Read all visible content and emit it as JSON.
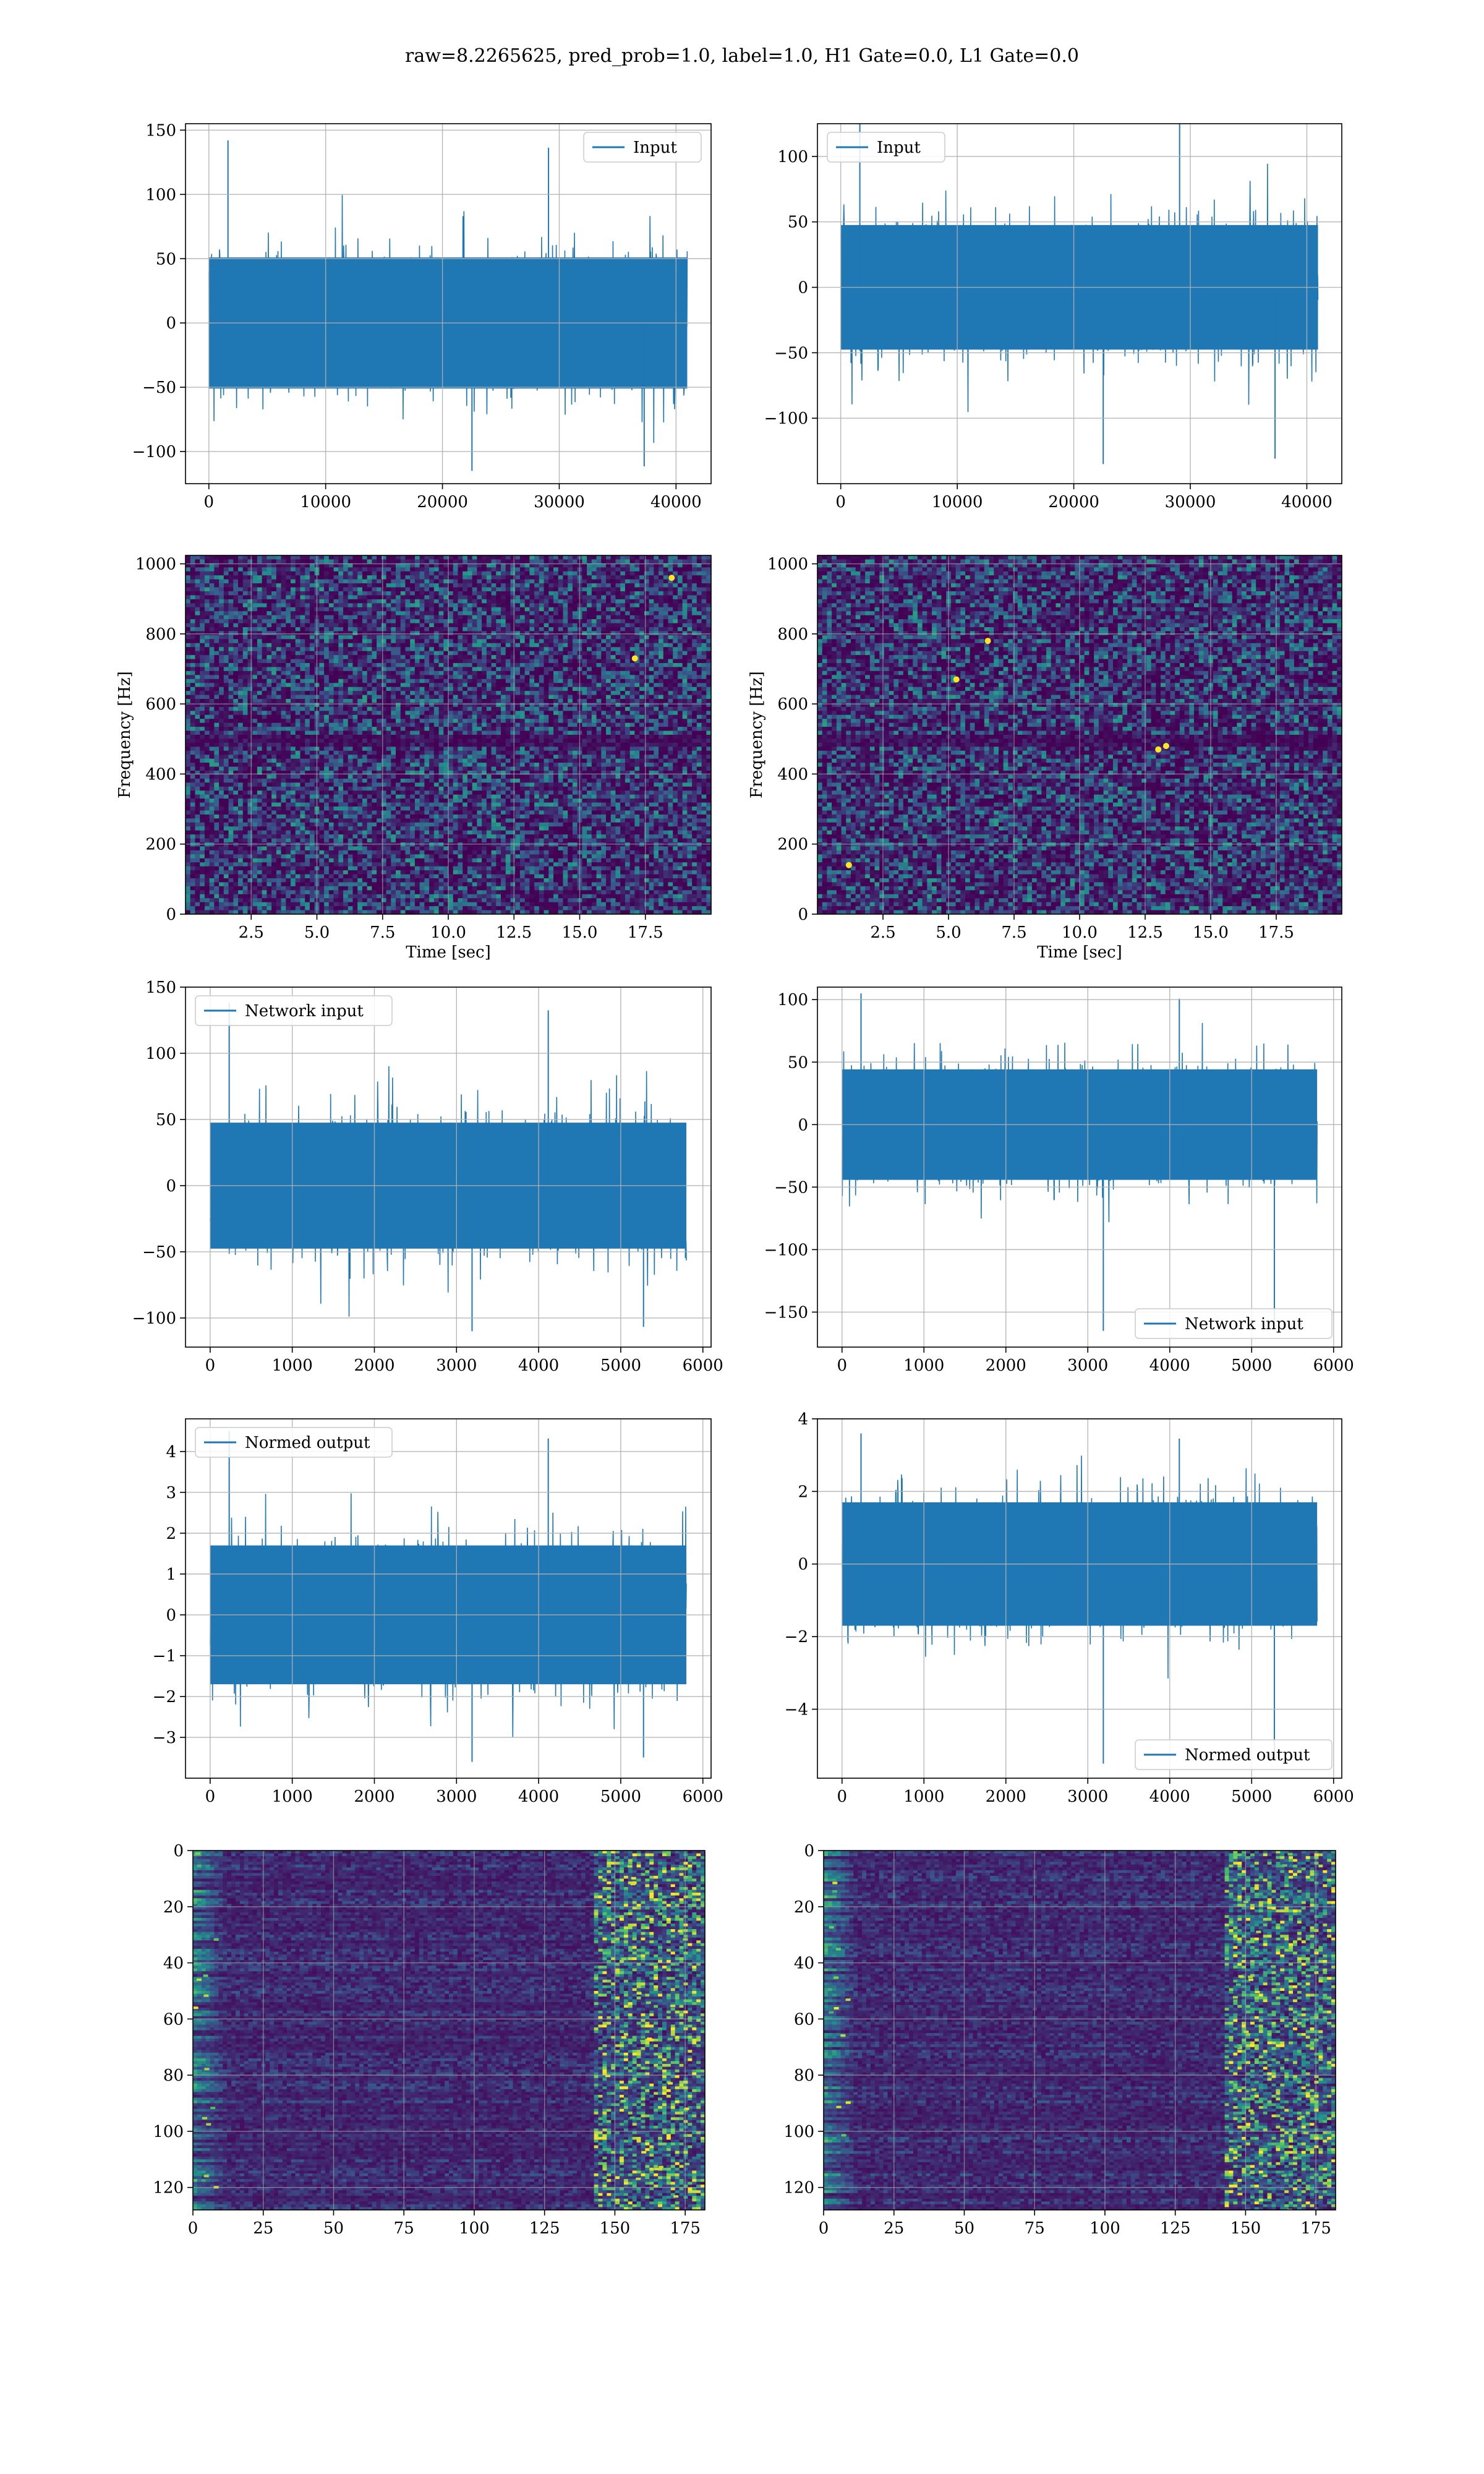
{
  "figure_title": "raw=8.2265625, pred_prob=1.0, label=1.0, H1 Gate=0.0, L1 Gate=0.0",
  "colors": {
    "series": "#1f77b4",
    "grid": "#b0b0b0",
    "axis": "#000000",
    "heat_low": "#440154",
    "heat_mid": "#21918c",
    "heat_high": "#fde725"
  },
  "chart_data": [
    {
      "id": "input-h1",
      "type": "line",
      "legend": "Input",
      "legend_loc": "upper right",
      "n_points": 40960,
      "amplitude": 30,
      "spike_range": [
        -115,
        142
      ],
      "xlim": [
        -2000,
        43000
      ],
      "ylim": [
        -125,
        155
      ],
      "xticks": [
        0,
        10000,
        20000,
        30000,
        40000
      ],
      "yticks": [
        -100,
        -50,
        0,
        50,
        100,
        150
      ],
      "grid": true
    },
    {
      "id": "input-l1",
      "type": "line",
      "legend": "Input",
      "legend_loc": "upper left",
      "n_points": 40960,
      "amplitude": 28,
      "spike_range": [
        -135,
        130
      ],
      "xlim": [
        -2000,
        43000
      ],
      "ylim": [
        -150,
        125
      ],
      "xticks": [
        0,
        10000,
        20000,
        30000,
        40000
      ],
      "yticks": [
        -100,
        -50,
        0,
        50,
        100
      ],
      "grid": true
    },
    {
      "id": "spec-h1",
      "type": "heatmap",
      "xlabel": "Time [sec]",
      "ylabel": "Frequency [Hz]",
      "xlim": [
        0,
        20
      ],
      "ylim": [
        0,
        1024
      ],
      "xticks": [
        2.5,
        5.0,
        7.5,
        10.0,
        12.5,
        15.0,
        17.5
      ],
      "yticks": [
        0,
        200,
        400,
        600,
        800,
        1000
      ],
      "grid": true,
      "hot_spots": [
        [
          18.5,
          960
        ],
        [
          17.1,
          730
        ]
      ]
    },
    {
      "id": "spec-l1",
      "type": "heatmap",
      "xlabel": "Time [sec]",
      "ylabel": "Frequency [Hz]",
      "xlim": [
        0,
        20
      ],
      "ylim": [
        0,
        1024
      ],
      "xticks": [
        2.5,
        5.0,
        7.5,
        10.0,
        12.5,
        15.0,
        17.5
      ],
      "yticks": [
        0,
        200,
        400,
        600,
        800,
        1000
      ],
      "grid": true,
      "hot_spots": [
        [
          6.5,
          780
        ],
        [
          5.3,
          670
        ],
        [
          13.0,
          470
        ],
        [
          13.3,
          480
        ],
        [
          1.2,
          140
        ]
      ]
    },
    {
      "id": "net-h1",
      "type": "line",
      "legend": "Network input",
      "legend_loc": "upper left",
      "n_points": 5800,
      "amplitude": 28,
      "spike_range": [
        -110,
        138
      ],
      "xlim": [
        -300,
        6100
      ],
      "ylim": [
        -122,
        150
      ],
      "xticks": [
        0,
        1000,
        2000,
        3000,
        4000,
        5000,
        6000
      ],
      "yticks": [
        -100,
        -50,
        0,
        50,
        100,
        150
      ],
      "grid": true
    },
    {
      "id": "net-l1",
      "type": "line",
      "legend": "Network input",
      "legend_loc": "lower right",
      "n_points": 5800,
      "amplitude": 26,
      "spike_range": [
        -165,
        105
      ],
      "xlim": [
        -300,
        6100
      ],
      "ylim": [
        -178,
        110
      ],
      "xticks": [
        0,
        1000,
        2000,
        3000,
        4000,
        5000,
        6000
      ],
      "yticks": [
        -150,
        -100,
        -50,
        0,
        50,
        100
      ],
      "grid": true
    },
    {
      "id": "norm-h1",
      "type": "line",
      "legend": "Normed output",
      "legend_loc": "upper left",
      "n_points": 5800,
      "amplitude": 1.0,
      "spike_range": [
        -3.6,
        4.5
      ],
      "xlim": [
        -300,
        6100
      ],
      "ylim": [
        -4.0,
        4.8
      ],
      "xticks": [
        0,
        1000,
        2000,
        3000,
        4000,
        5000,
        6000
      ],
      "yticks": [
        -3,
        -2,
        -1,
        0,
        1,
        2,
        3,
        4
      ],
      "grid": true
    },
    {
      "id": "norm-l1",
      "type": "line",
      "legend": "Normed output",
      "legend_loc": "lower right",
      "n_points": 5800,
      "amplitude": 1.0,
      "spike_range": [
        -5.5,
        3.6
      ],
      "xlim": [
        -300,
        6100
      ],
      "ylim": [
        -5.9,
        4.0
      ],
      "xticks": [
        0,
        1000,
        2000,
        3000,
        4000,
        5000,
        6000
      ],
      "yticks": [
        -4,
        -2,
        0,
        2,
        4
      ],
      "grid": true
    },
    {
      "id": "feat-h1",
      "type": "heatmap",
      "xlim": [
        0,
        182
      ],
      "ylim": [
        128,
        0
      ],
      "inverted_y": true,
      "xticks": [
        0,
        25,
        50,
        75,
        100,
        125,
        150,
        175
      ],
      "yticks": [
        0,
        20,
        40,
        60,
        80,
        100,
        120
      ],
      "grid": true
    },
    {
      "id": "feat-l1",
      "type": "heatmap",
      "xlim": [
        0,
        182
      ],
      "ylim": [
        128,
        0
      ],
      "inverted_y": true,
      "xticks": [
        0,
        25,
        50,
        75,
        100,
        125,
        150,
        175
      ],
      "yticks": [
        0,
        20,
        40,
        60,
        80,
        100,
        120
      ],
      "grid": true
    }
  ]
}
